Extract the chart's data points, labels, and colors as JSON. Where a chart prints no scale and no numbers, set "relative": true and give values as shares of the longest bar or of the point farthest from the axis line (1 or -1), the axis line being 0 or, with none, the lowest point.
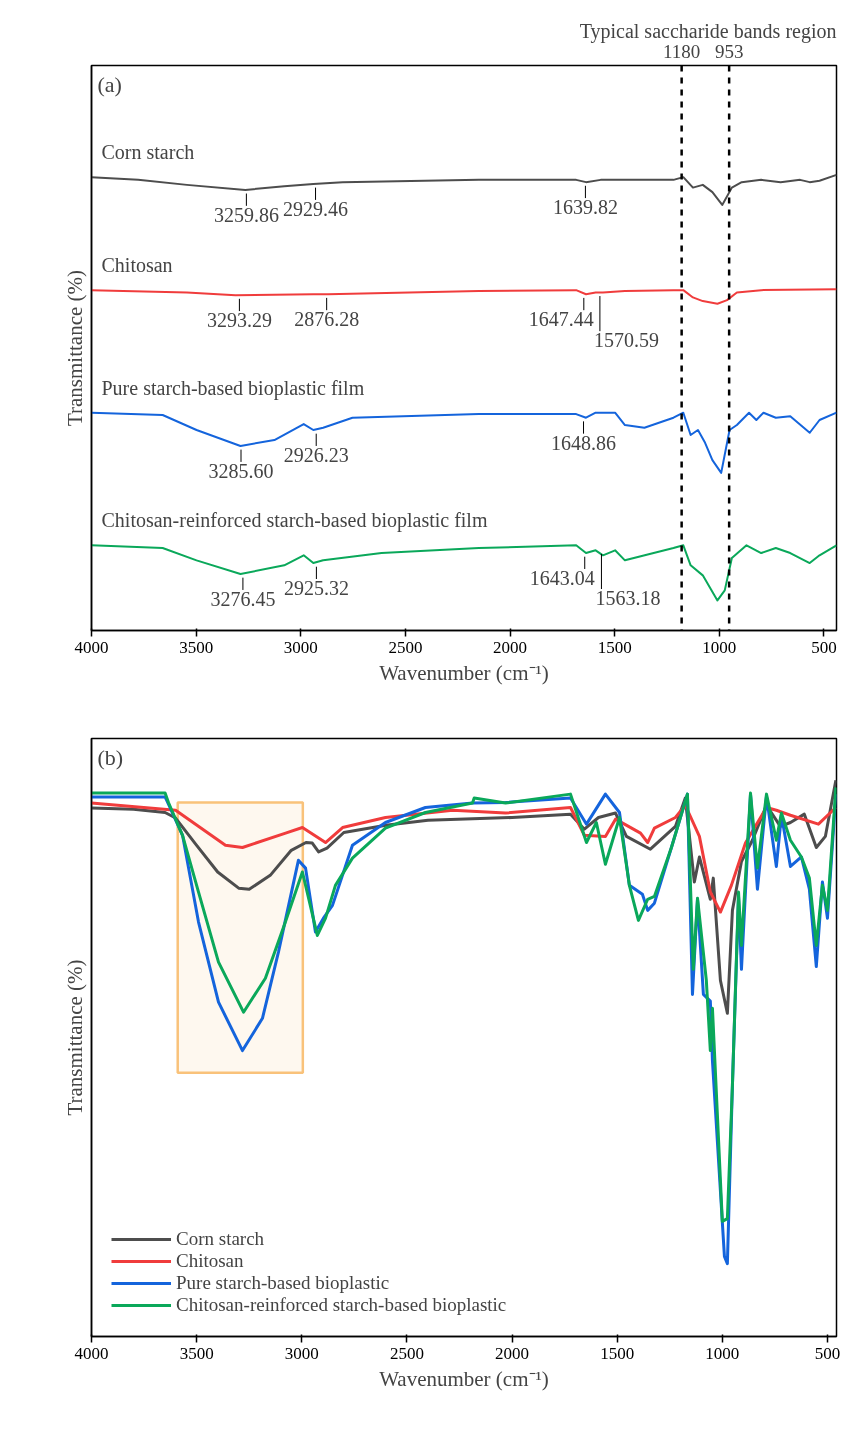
{
  "chart_data": [
    {
      "type": "line",
      "title": "(a)",
      "xlabel": "Wavenumber (cm⁻¹)",
      "ylabel": "Transmittance (%)",
      "relative": true,
      "xlim": [
        4000,
        440
      ],
      "xticks": [
        4000,
        3500,
        3000,
        2500,
        2000,
        1500,
        1000,
        500
      ],
      "tick_labels": "x",
      "grid": false,
      "legend": false,
      "line_style": "solid",
      "series": [
        {
          "name": "Corn starch",
          "color": "#4d4d4d",
          "x": [
            4000,
            3777,
            3544,
            3265,
            3079,
            2940,
            2800,
            2149,
            1684,
            1637,
            1567,
            1219,
            1172,
            1126,
            1079,
            1033,
            986,
            940,
            893,
            800,
            707,
            614,
            568,
            521,
            440
          ],
          "values": [
            0.995,
            0.989,
            0.978,
            0.967,
            0.975,
            0.98,
            0.984,
            0.989,
            0.989,
            0.984,
            0.989,
            0.989,
            0.995,
            0.972,
            0.978,
            0.962,
            0.934,
            0.972,
            0.984,
            0.989,
            0.984,
            0.989,
            0.984,
            0.987,
            1.0
          ]
        },
        {
          "name": "Chitosan",
          "color": "#f03c3c",
          "x": [
            4000,
            3544,
            3312,
            2940,
            2870,
            2149,
            1684,
            1637,
            1591,
            1556,
            1451,
            1219,
            1172,
            1126,
            1079,
            1009,
            963,
            916,
            800,
            440
          ],
          "values": [
            0.747,
            0.742,
            0.736,
            0.738,
            0.738,
            0.745,
            0.747,
            0.738,
            0.742,
            0.742,
            0.745,
            0.747,
            0.747,
            0.731,
            0.723,
            0.717,
            0.725,
            0.742,
            0.747,
            0.749
          ]
        },
        {
          "name": "Pure starch-based bioplastic film",
          "color": "#1464dc",
          "x": [
            4000,
            3660,
            3498,
            3288,
            3126,
            2986,
            2940,
            2893,
            2753,
            2149,
            1684,
            1637,
            1591,
            1498,
            1451,
            1358,
            1219,
            1172,
            1137,
            1102,
            1068,
            1033,
            991,
            951,
            916,
            858,
            823,
            789,
            730,
            661,
            568,
            521,
            440
          ],
          "values": [
            0.478,
            0.473,
            0.44,
            0.405,
            0.418,
            0.453,
            0.44,
            0.445,
            0.467,
            0.475,
            0.475,
            0.467,
            0.478,
            0.478,
            0.451,
            0.445,
            0.467,
            0.478,
            0.429,
            0.44,
            0.412,
            0.374,
            0.346,
            0.44,
            0.451,
            0.478,
            0.462,
            0.478,
            0.467,
            0.47,
            0.434,
            0.462,
            0.478
          ]
        },
        {
          "name": "Chitosan-reinforced starch-based bioplastic film",
          "color": "#0aa85a",
          "x": [
            4000,
            3660,
            3498,
            3288,
            3079,
            2986,
            2940,
            2893,
            2614,
            2149,
            1684,
            1637,
            1591,
            1556,
            1498,
            1451,
            1219,
            1172,
            1137,
            1079,
            1009,
            974,
            940,
            870,
            800,
            730,
            661,
            568,
            521,
            440
          ],
          "values": [
            0.187,
            0.181,
            0.154,
            0.124,
            0.143,
            0.165,
            0.148,
            0.154,
            0.17,
            0.181,
            0.187,
            0.17,
            0.176,
            0.165,
            0.176,
            0.154,
            0.181,
            0.187,
            0.143,
            0.121,
            0.066,
            0.088,
            0.159,
            0.187,
            0.17,
            0.181,
            0.17,
            0.148,
            0.165,
            0.187
          ]
        }
      ],
      "ref_lines": [
        {
          "axis": "x",
          "value": 1180,
          "label": "1180",
          "color": "#000000",
          "line_style": "dashed"
        },
        {
          "axis": "x",
          "value": 953,
          "label": "953",
          "color": "#000000",
          "line_style": "dashed"
        }
      ],
      "annotations": [
        "Typical saccharide bands region",
        {
          "text": "3259.86",
          "x": 3259.86,
          "y": 0.967
        },
        {
          "text": "2929.46",
          "x": 2929.46,
          "y": 0.98
        },
        {
          "text": "1639.82",
          "x": 1639.82,
          "y": 0.984
        },
        {
          "text": "3293.29",
          "x": 3293.29,
          "y": 0.736
        },
        {
          "text": "2876.28",
          "x": 2876.28,
          "y": 0.738
        },
        {
          "text": "1647.44",
          "x": 1647.44,
          "y": 0.738
        },
        {
          "text": "1570.59",
          "x": 1570.59,
          "y": 0.742
        },
        {
          "text": "3285.60",
          "x": 3285.6,
          "y": 0.405
        },
        {
          "text": "2926.23",
          "x": 2926.23,
          "y": 0.44
        },
        {
          "text": "1648.86",
          "x": 1648.86,
          "y": 0.467
        },
        {
          "text": "3276.45",
          "x": 3276.45,
          "y": 0.124
        },
        {
          "text": "2925.32",
          "x": 2925.32,
          "y": 0.148
        },
        {
          "text": "1643.04",
          "x": 1643.04,
          "y": 0.17
        },
        {
          "text": "1563.18",
          "x": 1563.18,
          "y": 0.176
        }
      ]
    },
    {
      "type": "line",
      "title": "(b)",
      "xlabel": "Wavenumber (cm⁻¹)",
      "ylabel": "Transmittance (%)",
      "relative": true,
      "xlim": [
        4000,
        457
      ],
      "xticks": [
        4000,
        3500,
        3000,
        2500,
        2000,
        1500,
        1000,
        500
      ],
      "tick_labels": "x",
      "grid": false,
      "legend": "bottom left",
      "line_style": "solid",
      "series": [
        {
          "name": "Corn starch",
          "color": "#4d4d4d",
          "x": [
            4000,
            3800,
            3650,
            3600,
            3500,
            3400,
            3300,
            3250,
            3150,
            3050,
            2980,
            2950,
            2920,
            2880,
            2800,
            2600,
            2400,
            2000,
            1722,
            1656,
            1589,
            1508,
            1456,
            1342,
            1223,
            1176,
            1133,
            1109,
            1057,
            1043,
            1009,
            976,
            952,
            909,
            857,
            790,
            724,
            676,
            610,
            553,
            510,
            460
          ],
          "values": [
            0.95,
            0.948,
            0.942,
            0.932,
            0.883,
            0.835,
            0.806,
            0.804,
            0.829,
            0.874,
            0.888,
            0.887,
            0.871,
            0.878,
            0.906,
            0.919,
            0.928,
            0.933,
            0.939,
            0.912,
            0.933,
            0.941,
            0.899,
            0.876,
            0.917,
            0.968,
            0.817,
            0.862,
            0.786,
            0.824,
            0.64,
            0.581,
            0.766,
            0.854,
            0.892,
            0.955,
            0.917,
            0.924,
            0.939,
            0.879,
            0.899,
            1.0
          ]
        },
        {
          "name": "Chitosan",
          "color": "#f03c3c",
          "x": [
            4000,
            3600,
            3363,
            3282,
            3077,
            2997,
            2887,
            2806,
            2602,
            2283,
            2031,
            1722,
            1656,
            1556,
            1508,
            1389,
            1355,
            1323,
            1223,
            1176,
            1109,
            1057,
            1009,
            957,
            890,
            790,
            743,
            676,
            543,
            460
          ],
          "values": [
            0.959,
            0.946,
            0.883,
            0.879,
            0.905,
            0.915,
            0.888,
            0.915,
            0.933,
            0.946,
            0.941,
            0.951,
            0.901,
            0.899,
            0.93,
            0.905,
            0.888,
            0.914,
            0.933,
            0.955,
            0.899,
            0.799,
            0.763,
            0.811,
            0.887,
            0.951,
            0.946,
            0.937,
            0.921,
            0.951
          ]
        },
        {
          "name": "Pure starch-based bioplastic",
          "color": "#1464dc",
          "x": [
            4000,
            3650,
            3634,
            3567,
            3491,
            3396,
            3282,
            3187,
            3111,
            3016,
            2982,
            2935,
            2897,
            2854,
            2759,
            2602,
            2412,
            2188,
            2031,
            1722,
            1646,
            1556,
            1489,
            1442,
            1380,
            1355,
            1323,
            1242,
            1166,
            1142,
            1118,
            1090,
            1057,
            1047,
            990,
            976,
            952,
            923,
            909,
            866,
            833,
            790,
            743,
            719,
            676,
            624,
            586,
            553,
            524,
            500,
            460
          ],
          "values": [
            0.97,
            0.97,
            0.957,
            0.901,
            0.745,
            0.601,
            0.514,
            0.572,
            0.691,
            0.856,
            0.842,
            0.727,
            0.752,
            0.775,
            0.883,
            0.924,
            0.951,
            0.959,
            0.96,
            0.968,
            0.921,
            0.975,
            0.942,
            0.811,
            0.795,
            0.766,
            0.779,
            0.879,
            0.975,
            0.615,
            0.786,
            0.615,
            0.603,
            0.496,
            0.144,
            0.131,
            0.451,
            0.791,
            0.66,
            0.975,
            0.804,
            0.971,
            0.845,
            0.937,
            0.845,
            0.862,
            0.804,
            0.665,
            0.817,
            0.752,
            0.975
          ]
        },
        {
          "name": "Chitosan-reinforced starch-based bioplastic",
          "color": "#0aa85a",
          "x": [
            4000,
            3650,
            3634,
            3567,
            3491,
            3396,
            3277,
            3173,
            3078,
            2997,
            2926,
            2887,
            2840,
            2759,
            2602,
            2412,
            2188,
            2180,
            2031,
            1722,
            1646,
            1599,
            1556,
            1489,
            1442,
            1399,
            1355,
            1323,
            1242,
            1166,
            1138,
            1118,
            1076,
            1057,
            1047,
            1000,
            976,
            952,
            923,
            909,
            866,
            833,
            790,
            743,
            719,
            676,
            624,
            586,
            553,
            524,
            500,
            460
          ],
          "values": [
            0.977,
            0.977,
            0.96,
            0.901,
            0.799,
            0.673,
            0.583,
            0.644,
            0.745,
            0.835,
            0.721,
            0.752,
            0.811,
            0.86,
            0.914,
            0.942,
            0.959,
            0.968,
            0.959,
            0.975,
            0.888,
            0.924,
            0.849,
            0.933,
            0.811,
            0.748,
            0.786,
            0.791,
            0.879,
            0.975,
            0.66,
            0.788,
            0.64,
            0.514,
            0.59,
            0.207,
            0.212,
            0.451,
            0.799,
            0.703,
            0.977,
            0.842,
            0.975,
            0.892,
            0.941,
            0.892,
            0.862,
            0.824,
            0.703,
            0.811,
            0.766,
            0.987
          ]
        }
      ],
      "bands": [
        {
          "axis": "x",
          "from": 3590,
          "to": 2995,
          "color": "#f9c27a"
        }
      ]
    }
  ]
}
